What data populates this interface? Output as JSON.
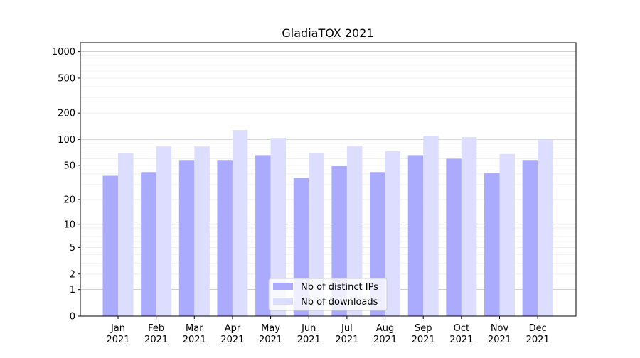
{
  "chart_data": {
    "type": "bar",
    "title": "GladiaTOX 2021",
    "xlabel": "",
    "ylabel": "",
    "yscale": "log(x+1)",
    "ylim": [
      0,
      1200
    ],
    "yticks": [
      0,
      1,
      2,
      5,
      10,
      20,
      50,
      100,
      200,
      500,
      1000
    ],
    "grid": true,
    "legend_position": "bottom-center",
    "categories": [
      "Jan\n2021",
      "Feb\n2021",
      "Mar\n2021",
      "Apr\n2021",
      "May\n2021",
      "Jun\n2021",
      "Jul\n2021",
      "Aug\n2021",
      "Sep\n2021",
      "Oct\n2021",
      "Nov\n2021",
      "Dec\n2021"
    ],
    "series": [
      {
        "name": "Nb of distinct IPs",
        "color": "#aaaaff",
        "values": [
          38,
          42,
          58,
          58,
          66,
          36,
          50,
          42,
          66,
          60,
          41,
          58
        ]
      },
      {
        "name": "Nb of downloads",
        "color": "#ddddff",
        "values": [
          69,
          83,
          83,
          128,
          104,
          70,
          85,
          73,
          110,
          106,
          68,
          100
        ]
      }
    ]
  }
}
